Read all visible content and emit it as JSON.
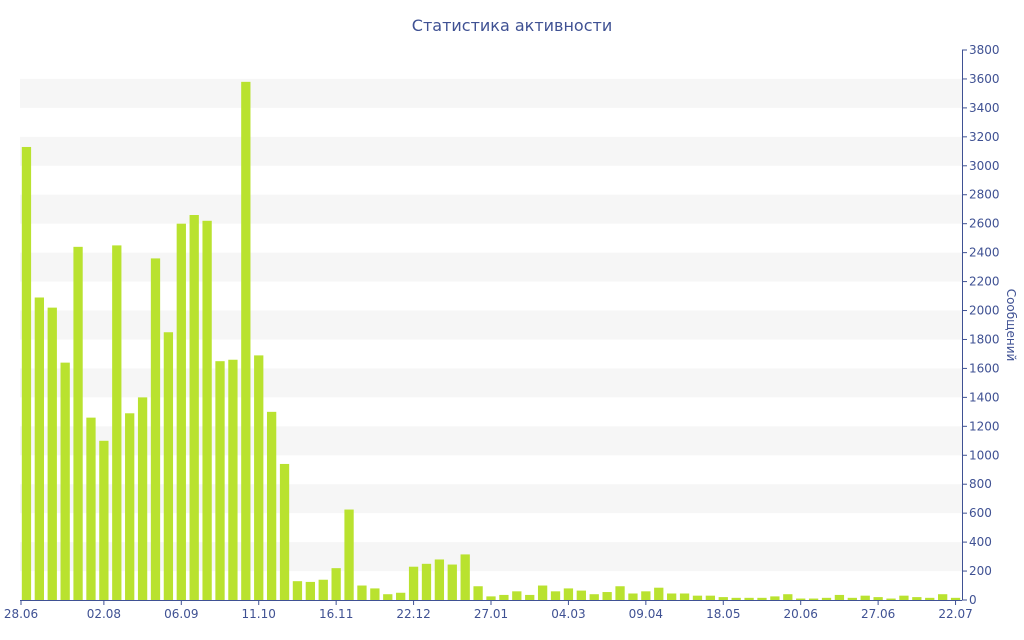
{
  "chart_data": {
    "type": "bar",
    "title": "Статистика активности",
    "xlabel": "",
    "ylabel": "Сообщений",
    "y_axis_side": "right",
    "ylim": [
      0,
      3800
    ],
    "y_ticks": [
      0,
      200,
      400,
      600,
      800,
      1000,
      1200,
      1400,
      1600,
      1800,
      2000,
      2200,
      2400,
      2600,
      2800,
      3000,
      3200,
      3400,
      3600,
      3800
    ],
    "x_tick_labels": [
      {
        "index": 0,
        "label": "28.06"
      },
      {
        "index": 6,
        "label": "02.08"
      },
      {
        "index": 12,
        "label": "06.09"
      },
      {
        "index": 18,
        "label": "11.10"
      },
      {
        "index": 24,
        "label": "16.11"
      },
      {
        "index": 30,
        "label": "22.12"
      },
      {
        "index": 36,
        "label": "27.01"
      },
      {
        "index": 42,
        "label": "04.03"
      },
      {
        "index": 48,
        "label": "09.04"
      },
      {
        "index": 54,
        "label": "18.05"
      },
      {
        "index": 60,
        "label": "20.06"
      },
      {
        "index": 66,
        "label": "27.06"
      },
      {
        "index": 72,
        "label": "22.07"
      }
    ],
    "values": [
      3130,
      2090,
      2020,
      1640,
      2440,
      1260,
      1100,
      2450,
      1290,
      1400,
      2360,
      1850,
      2600,
      2660,
      2620,
      1650,
      1660,
      3580,
      1690,
      1300,
      940,
      130,
      125,
      140,
      220,
      625,
      100,
      80,
      40,
      50,
      230,
      250,
      280,
      245,
      315,
      95,
      25,
      35,
      60,
      35,
      100,
      60,
      80,
      65,
      40,
      55,
      95,
      45,
      60,
      85,
      45,
      45,
      30,
      30,
      20,
      15,
      15,
      15,
      25,
      40,
      10,
      10,
      15,
      35,
      15,
      30,
      20,
      10,
      30,
      20,
      15,
      40,
      15
    ],
    "grid": "alternating horizontal bands",
    "colors": {
      "bar": "#b9e22f",
      "band": "#f6f6f6",
      "text": "#3f5193",
      "axis": "#3f5193"
    }
  }
}
